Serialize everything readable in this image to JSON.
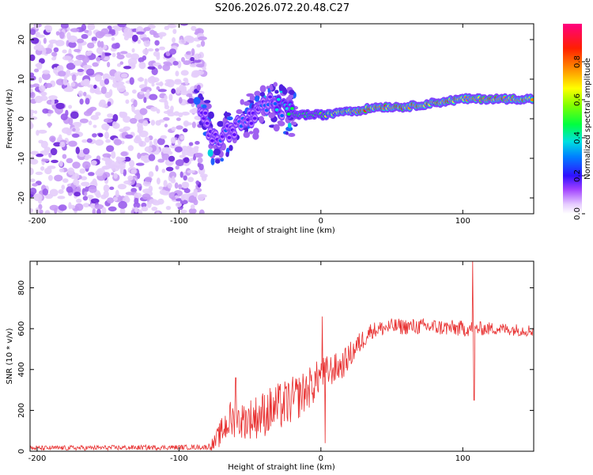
{
  "title": "S206.2026.072.20.48.C27",
  "chart_data": [
    {
      "type": "heatmap",
      "name": "spectrogram",
      "xlabel": "Height of straight line (km)",
      "ylabel": "Frequency (Hz)",
      "xlim": [
        -205,
        150
      ],
      "ylim": [
        -24,
        24
      ],
      "xticks": [
        -200,
        -100,
        0,
        100
      ],
      "yticks": [
        -20,
        -10,
        0,
        10,
        20
      ],
      "colorbar": {
        "label": "Normalized spectral amplitude",
        "range": [
          0,
          1
        ],
        "ticks": [
          "0.0",
          "0.2",
          "0.4",
          "0.6",
          "0.8"
        ],
        "tick_values": [
          0,
          0.2,
          0.4,
          0.6,
          0.8
        ]
      },
      "ridge": {
        "x": [
          -85,
          -75,
          -65,
          -55,
          -45,
          -35,
          -25,
          -15,
          -5,
          5,
          15,
          25,
          40,
          60,
          80,
          100,
          120,
          150
        ],
        "freq": [
          3,
          -6,
          -3,
          -1,
          1,
          4,
          2,
          1,
          1,
          1,
          2,
          2,
          3,
          3,
          4,
          5,
          5,
          5
        ],
        "amplitude": [
          0.3,
          0.3,
          0.35,
          0.35,
          0.3,
          0.4,
          0.5,
          0.6,
          0.6,
          0.7,
          0.8,
          0.9,
          0.95,
          0.95,
          0.9,
          0.9,
          0.95,
          0.95
        ]
      }
    },
    {
      "type": "line",
      "name": "snr",
      "xlabel": "Height of straight line (km)",
      "ylabel": "SNR (10 * v/v)",
      "xlim": [
        -205,
        150
      ],
      "ylim": [
        0,
        930
      ],
      "xticks": [
        -200,
        -100,
        0,
        100
      ],
      "yticks": [
        0,
        200,
        400,
        600,
        800
      ],
      "color": "#e83030",
      "envelope": {
        "x": [
          -205,
          -80,
          -75,
          -65,
          -55,
          -45,
          -35,
          -25,
          -15,
          -5,
          0,
          5,
          15,
          25,
          35,
          50,
          75,
          100,
          125,
          150
        ],
        "mean": [
          15,
          20,
          40,
          150,
          150,
          170,
          200,
          230,
          270,
          330,
          380,
          390,
          420,
          510,
          590,
          610,
          610,
          600,
          600,
          590
        ],
        "spread": [
          12,
          12,
          40,
          100,
          90,
          110,
          120,
          120,
          110,
          100,
          80,
          80,
          70,
          60,
          40,
          40,
          40,
          40,
          30,
          30
        ]
      },
      "spikes": [
        {
          "x": -60,
          "y": 360
        },
        {
          "x": 1,
          "y": 660
        },
        {
          "x": 3,
          "y": 40
        },
        {
          "x": 107,
          "y": 940
        },
        {
          "x": 108,
          "y": 250
        }
      ]
    }
  ]
}
